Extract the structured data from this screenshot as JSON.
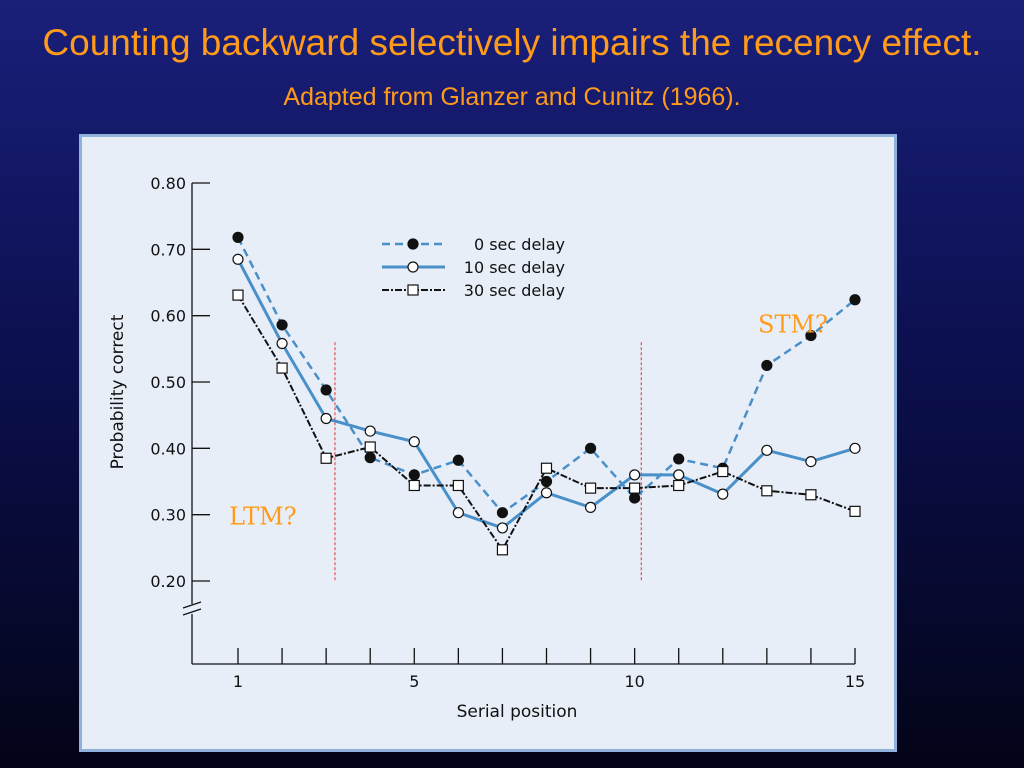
{
  "title": {
    "main": "Counting backward selectively impairs the recency effect.",
    "source": "Adapted from Glanzer and Cunitz (1966)."
  },
  "colors": {
    "title": "#ff9a1a",
    "annotation": "#ff9a1a",
    "series_blue": "#4a90c8",
    "series_black": "#111111",
    "divider": "#e03030"
  },
  "chart_data": {
    "type": "line",
    "xlabel": "Serial position",
    "ylabel": "Probability correct",
    "xlim": [
      1,
      15
    ],
    "ylim": [
      0.2,
      0.8
    ],
    "y_axis_break": true,
    "x_ticks": [
      1,
      5,
      10,
      15
    ],
    "y_ticks": [
      "0.80",
      "0.70",
      "0.60",
      "0.50",
      "0.40",
      "0.30",
      "0.20"
    ],
    "grid": false,
    "legend_position": "top-center",
    "x": [
      1,
      2,
      3,
      4,
      5,
      6,
      7,
      8,
      9,
      10,
      11,
      12,
      13,
      14,
      15
    ],
    "series": [
      {
        "name": "0 sec delay",
        "style": "dashed-filled-circle",
        "values": [
          0.718,
          0.586,
          0.488,
          0.386,
          0.36,
          0.382,
          0.303,
          0.35,
          0.4,
          0.325,
          0.384,
          0.37,
          0.525,
          0.57,
          0.624
        ]
      },
      {
        "name": "10 sec delay",
        "style": "solid-open-circle",
        "values": [
          0.685,
          0.558,
          0.445,
          0.426,
          0.41,
          0.303,
          0.28,
          0.333,
          0.311,
          0.36,
          0.36,
          0.331,
          0.397,
          0.38,
          0.4
        ]
      },
      {
        "name": "30 sec delay",
        "style": "dashdot-open-square",
        "values": [
          0.631,
          0.521,
          0.385,
          0.402,
          0.344,
          0.344,
          0.247,
          0.37,
          0.34,
          0.34,
          0.344,
          0.365,
          0.336,
          0.33,
          0.305
        ]
      }
    ],
    "dividers_at_x": [
      3.2,
      10.15
    ],
    "annotations": [
      {
        "text": "STM?",
        "x": 12.8,
        "y": 0.575
      },
      {
        "text": "LTM?",
        "x": 0.8,
        "y": 0.285
      }
    ]
  }
}
